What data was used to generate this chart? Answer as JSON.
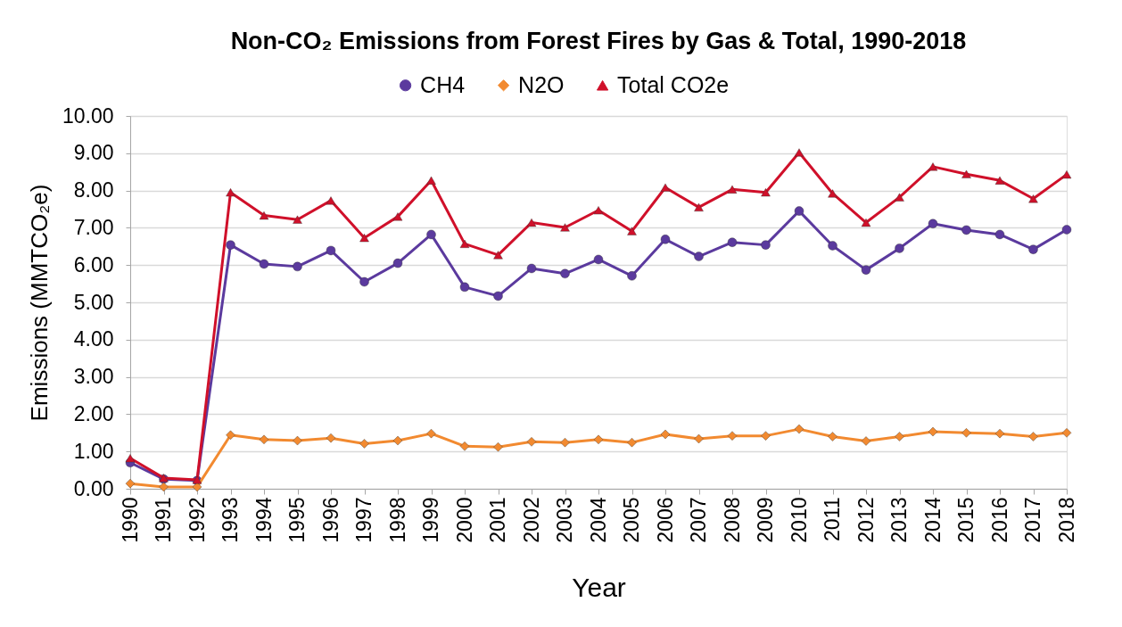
{
  "chart_data": {
    "type": "line",
    "title": "Non-CO₂ Emissions from Forest Fires by Gas & Total, 1990-2018",
    "xlabel": "Year",
    "ylabel": "Emissions (MMTCO₂e)",
    "categories": [
      "1990",
      "1991",
      "1992",
      "1993",
      "1994",
      "1995",
      "1996",
      "1997",
      "1998",
      "1999",
      "2000",
      "2001",
      "2002",
      "2003",
      "2004",
      "2005",
      "2006",
      "2007",
      "2008",
      "2009",
      "2010",
      "2011",
      "2012",
      "2013",
      "2014",
      "2015",
      "2016",
      "2017",
      "2018"
    ],
    "series": [
      {
        "name": "CH4",
        "color": "#5b3a9e",
        "marker": "circle",
        "values": [
          0.7,
          0.26,
          0.22,
          6.54,
          6.03,
          5.96,
          6.39,
          5.55,
          6.05,
          6.82,
          5.41,
          5.17,
          5.91,
          5.77,
          6.15,
          5.71,
          6.69,
          6.23,
          6.61,
          6.54,
          7.45,
          6.52,
          5.87,
          6.45,
          7.11,
          6.94,
          6.82,
          6.42,
          6.95
        ]
      },
      {
        "name": "N2O",
        "color": "#f28a30",
        "marker": "diamond",
        "values": [
          0.14,
          0.05,
          0.05,
          1.44,
          1.32,
          1.29,
          1.36,
          1.21,
          1.29,
          1.48,
          1.14,
          1.12,
          1.26,
          1.24,
          1.32,
          1.24,
          1.46,
          1.34,
          1.42,
          1.42,
          1.6,
          1.4,
          1.28,
          1.4,
          1.53,
          1.5,
          1.48,
          1.4,
          1.5
        ]
      },
      {
        "name": "Total CO2e",
        "color": "#d0102a",
        "marker": "triangle",
        "values": [
          0.82,
          0.29,
          0.24,
          7.95,
          7.33,
          7.22,
          7.73,
          6.73,
          7.3,
          8.27,
          6.57,
          6.27,
          7.14,
          7.01,
          7.47,
          6.91,
          8.08,
          7.55,
          8.03,
          7.95,
          9.02,
          7.92,
          7.14,
          7.82,
          8.64,
          8.44,
          8.27,
          7.78,
          8.43
        ]
      }
    ],
    "ylim": [
      0,
      10
    ],
    "yticks": [
      {
        "value": 0,
        "label": "0.00"
      },
      {
        "value": 1,
        "label": "1.00"
      },
      {
        "value": 2,
        "label": "2.00"
      },
      {
        "value": 3,
        "label": "3.00"
      },
      {
        "value": 4,
        "label": "4.00"
      },
      {
        "value": 5,
        "label": "5.00"
      },
      {
        "value": 6,
        "label": "6.00"
      },
      {
        "value": 7,
        "label": "7.00"
      },
      {
        "value": 8,
        "label": "8.00"
      },
      {
        "value": 9,
        "label": "9.00"
      },
      {
        "value": 10,
        "label": "10.00"
      }
    ],
    "grid": "y",
    "legend": "top",
    "line_style": "solid"
  }
}
